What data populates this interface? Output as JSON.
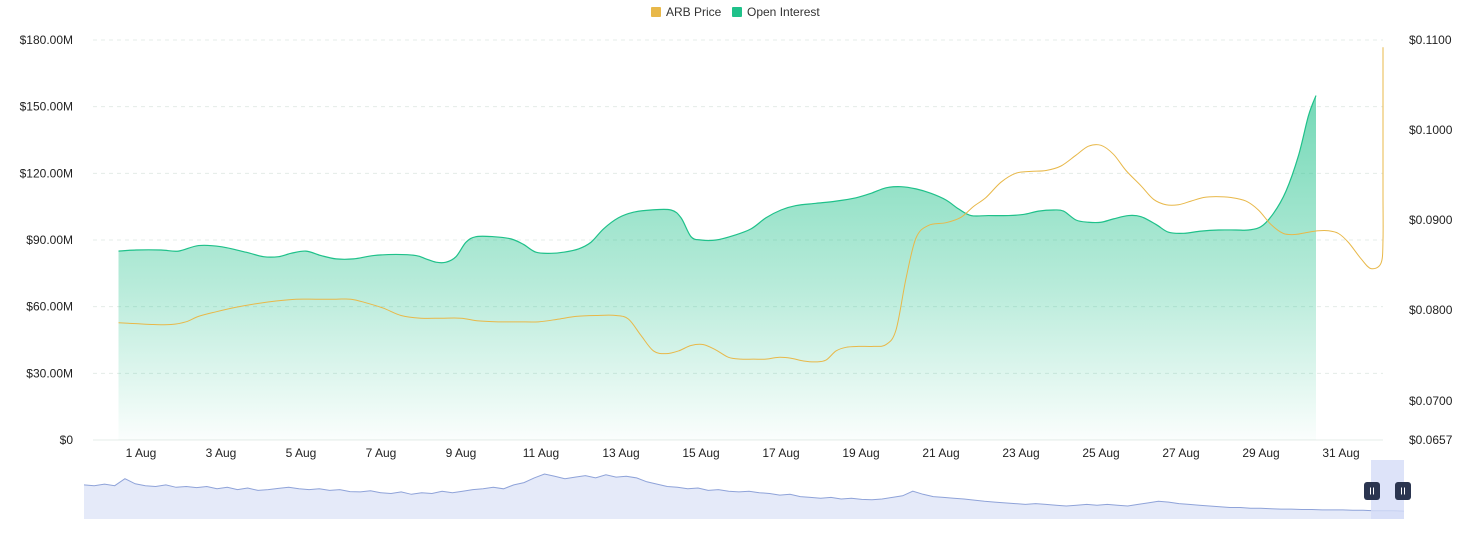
{
  "chart_data": {
    "type": "area",
    "title": "",
    "legend": {
      "placement": "top-center",
      "items": [
        {
          "label": "ARB Price",
          "color": "#e8b849"
        },
        {
          "label": "Open Interest",
          "color": "#1fc18a"
        }
      ]
    },
    "x_tick_labels": [
      "1 Aug",
      "3 Aug",
      "5 Aug",
      "7 Aug",
      "9 Aug",
      "11 Aug",
      "13 Aug",
      "15 Aug",
      "17 Aug",
      "19 Aug",
      "21 Aug",
      "23 Aug",
      "25 Aug",
      "27 Aug",
      "29 Aug",
      "31 Aug"
    ],
    "x_range_days": [
      0.1,
      32.0
    ],
    "y_left": {
      "ticks": [
        "$180.00M",
        "$150.00M",
        "$120.00M",
        "$90.00M",
        "$60.00M",
        "$30.00M",
        "$0"
      ],
      "tick_values": [
        180,
        150,
        120,
        90,
        60,
        30,
        0
      ],
      "range": [
        0,
        180
      ],
      "unit": "USD millions"
    },
    "y_right": {
      "ticks": [
        "$0.1100",
        "$0.1000",
        "$0.0900",
        "$0.0800",
        "$0.0700",
        "$0.0657"
      ],
      "tick_values": [
        0.11,
        0.1,
        0.09,
        0.08,
        0.07,
        0.0657
      ],
      "range": [
        0.0657,
        0.11
      ]
    },
    "grid": true,
    "series": [
      {
        "name": "Open Interest",
        "color": "#1fc18a",
        "kind": "area",
        "axis": "left",
        "points": [
          [
            0.1,
            85
          ],
          [
            0.8,
            85.5
          ],
          [
            1.8,
            85.5
          ],
          [
            2.5,
            85
          ],
          [
            3.3,
            87.5
          ],
          [
            4.2,
            87
          ],
          [
            5.2,
            84.5
          ],
          [
            5.9,
            82.5
          ],
          [
            6.5,
            82.5
          ],
          [
            7.0,
            84
          ],
          [
            7.6,
            85
          ],
          [
            8.2,
            83
          ],
          [
            8.8,
            81.5
          ],
          [
            9.5,
            81.5
          ],
          [
            10.3,
            83
          ],
          [
            11.2,
            83.5
          ],
          [
            12.0,
            83
          ],
          [
            12.4,
            81.5
          ],
          [
            12.8,
            80
          ],
          [
            13.2,
            80
          ],
          [
            13.6,
            82.5
          ],
          [
            14.0,
            89
          ],
          [
            14.4,
            91.5
          ],
          [
            15.1,
            91.5
          ],
          [
            15.8,
            90.5
          ],
          [
            16.3,
            88
          ],
          [
            16.8,
            84.5
          ],
          [
            17.4,
            84
          ],
          [
            17.9,
            84.5
          ],
          [
            18.5,
            86
          ],
          [
            19.0,
            89
          ],
          [
            19.5,
            95
          ],
          [
            20.1,
            100
          ],
          [
            20.7,
            102.5
          ],
          [
            21.4,
            103.5
          ],
          [
            22.2,
            103.5
          ],
          [
            22.6,
            100
          ],
          [
            23.0,
            91.5
          ],
          [
            23.4,
            90
          ],
          [
            24.0,
            90
          ],
          [
            24.7,
            92
          ],
          [
            25.4,
            95
          ],
          [
            26.0,
            100
          ],
          [
            26.6,
            103.5
          ],
          [
            27.2,
            105.5
          ],
          [
            28.0,
            106.5
          ],
          [
            28.8,
            107.5
          ],
          [
            29.6,
            109
          ],
          [
            30.2,
            111
          ],
          [
            30.8,
            113.5
          ],
          [
            31.4,
            114
          ],
          [
            32.0,
            113
          ],
          [
            32.6,
            111
          ],
          [
            33.2,
            108
          ],
          [
            33.7,
            104
          ],
          [
            34.2,
            101
          ],
          [
            34.9,
            101
          ],
          [
            35.7,
            101
          ],
          [
            36.3,
            101.5
          ],
          [
            36.9,
            103
          ],
          [
            37.5,
            103.5
          ],
          [
            37.9,
            103
          ],
          [
            38.4,
            99
          ],
          [
            38.9,
            98
          ],
          [
            39.4,
            98
          ],
          [
            39.9,
            99.5
          ],
          [
            40.5,
            101
          ],
          [
            41.0,
            100.5
          ],
          [
            41.6,
            97
          ],
          [
            42.1,
            93.5
          ],
          [
            42.7,
            93
          ],
          [
            43.4,
            94
          ],
          [
            44.1,
            94.5
          ],
          [
            44.8,
            94.5
          ],
          [
            45.3,
            94.5
          ],
          [
            45.8,
            96
          ],
          [
            46.3,
            102
          ],
          [
            46.8,
            112
          ],
          [
            47.3,
            128
          ],
          [
            47.7,
            146
          ],
          [
            48.0,
            155
          ]
        ]
      },
      {
        "name": "ARB Price",
        "color": "#e8b849",
        "kind": "line",
        "axis": "right",
        "points": [
          [
            0.1,
            0.0786
          ],
          [
            0.8,
            0.0785
          ],
          [
            1.5,
            0.0784
          ],
          [
            2.2,
            0.0784
          ],
          [
            2.8,
            0.0787
          ],
          [
            3.3,
            0.0793
          ],
          [
            4.0,
            0.0798
          ],
          [
            4.8,
            0.0803
          ],
          [
            5.6,
            0.0807
          ],
          [
            6.4,
            0.081
          ],
          [
            7.2,
            0.0812
          ],
          [
            8.0,
            0.0812
          ],
          [
            8.8,
            0.0812
          ],
          [
            9.4,
            0.0812
          ],
          [
            10.0,
            0.0808
          ],
          [
            10.7,
            0.0802
          ],
          [
            11.4,
            0.0794
          ],
          [
            12.2,
            0.0791
          ],
          [
            13.0,
            0.0791
          ],
          [
            13.8,
            0.0791
          ],
          [
            14.5,
            0.0788
          ],
          [
            15.3,
            0.0787
          ],
          [
            16.1,
            0.0787
          ],
          [
            16.9,
            0.0787
          ],
          [
            17.7,
            0.079
          ],
          [
            18.4,
            0.0793
          ],
          [
            19.2,
            0.0794
          ],
          [
            20.0,
            0.0794
          ],
          [
            20.5,
            0.079
          ],
          [
            21.0,
            0.0772
          ],
          [
            21.5,
            0.0755
          ],
          [
            22.0,
            0.0752
          ],
          [
            22.5,
            0.0755
          ],
          [
            23.0,
            0.0761
          ],
          [
            23.5,
            0.0762
          ],
          [
            24.0,
            0.0756
          ],
          [
            24.5,
            0.0748
          ],
          [
            25.0,
            0.0746
          ],
          [
            25.5,
            0.0746
          ],
          [
            26.0,
            0.0746
          ],
          [
            26.5,
            0.0748
          ],
          [
            27.0,
            0.0747
          ],
          [
            27.5,
            0.0744
          ],
          [
            28.0,
            0.0743
          ],
          [
            28.4,
            0.0745
          ],
          [
            28.8,
            0.0755
          ],
          [
            29.2,
            0.0759
          ],
          [
            29.7,
            0.076
          ],
          [
            30.3,
            0.076
          ],
          [
            30.8,
            0.0762
          ],
          [
            31.2,
            0.0778
          ],
          [
            31.6,
            0.0835
          ],
          [
            32.0,
            0.088
          ],
          [
            32.5,
            0.0894
          ],
          [
            33.2,
            0.0897
          ],
          [
            33.8,
            0.0903
          ],
          [
            34.3,
            0.0915
          ],
          [
            34.8,
            0.0925
          ],
          [
            35.4,
            0.0942
          ],
          [
            36.0,
            0.0952
          ],
          [
            36.6,
            0.0954
          ],
          [
            37.2,
            0.0955
          ],
          [
            37.8,
            0.096
          ],
          [
            38.4,
            0.0972
          ],
          [
            38.9,
            0.0982
          ],
          [
            39.4,
            0.0983
          ],
          [
            39.9,
            0.0973
          ],
          [
            40.4,
            0.0955
          ],
          [
            41.0,
            0.0938
          ],
          [
            41.5,
            0.0923
          ],
          [
            42.0,
            0.0917
          ],
          [
            42.5,
            0.0917
          ],
          [
            43.0,
            0.0921
          ],
          [
            43.5,
            0.0925
          ],
          [
            44.0,
            0.0926
          ],
          [
            44.6,
            0.0925
          ],
          [
            45.2,
            0.0921
          ],
          [
            45.7,
            0.0911
          ],
          [
            46.2,
            0.0895
          ],
          [
            46.7,
            0.0885
          ],
          [
            47.2,
            0.0884
          ],
          [
            47.6,
            0.0886
          ],
          [
            48.1,
            0.0888
          ],
          [
            48.5,
            0.0888
          ],
          [
            48.9,
            0.0885
          ],
          [
            49.3,
            0.0875
          ],
          [
            49.8,
            0.0857
          ],
          [
            50.2,
            0.0846
          ],
          [
            50.6,
            0.0852
          ],
          [
            51.0,
            0.0878
          ],
          [
            51.3,
            0.093
          ],
          [
            51.6,
            0.1005
          ],
          [
            51.9,
            0.1092
          ]
        ]
      }
    ],
    "navigator": {
      "values": [
        0.72,
        0.7,
        0.74,
        0.7,
        0.88,
        0.75,
        0.7,
        0.68,
        0.72,
        0.66,
        0.68,
        0.65,
        0.68,
        0.62,
        0.66,
        0.6,
        0.64,
        0.58,
        0.6,
        0.63,
        0.66,
        0.62,
        0.6,
        0.62,
        0.58,
        0.6,
        0.55,
        0.54,
        0.57,
        0.52,
        0.5,
        0.54,
        0.48,
        0.52,
        0.5,
        0.56,
        0.52,
        0.56,
        0.6,
        0.62,
        0.66,
        0.62,
        0.72,
        0.78,
        0.9,
        1.0,
        0.94,
        0.88,
        0.92,
        0.96,
        0.9,
        0.98,
        0.92,
        0.94,
        0.9,
        0.8,
        0.74,
        0.68,
        0.66,
        0.62,
        0.64,
        0.58,
        0.6,
        0.56,
        0.54,
        0.56,
        0.52,
        0.5,
        0.46,
        0.48,
        0.42,
        0.4,
        0.38,
        0.4,
        0.36,
        0.38,
        0.35,
        0.34,
        0.36,
        0.4,
        0.44,
        0.56,
        0.48,
        0.42,
        0.4,
        0.38,
        0.36,
        0.33,
        0.3,
        0.28,
        0.26,
        0.24,
        0.22,
        0.24,
        0.22,
        0.2,
        0.18,
        0.2,
        0.22,
        0.2,
        0.22,
        0.2,
        0.18,
        0.22,
        0.26,
        0.3,
        0.28,
        0.24,
        0.22,
        0.2,
        0.18,
        0.16,
        0.14,
        0.14,
        0.12,
        0.12,
        0.11,
        0.1,
        0.1,
        0.09,
        0.09,
        0.08,
        0.08,
        0.08,
        0.07,
        0.07,
        0.06,
        0.06,
        0.06,
        0.05
      ],
      "fill_color": "#e5eaf9",
      "line_color": "#8fa3d9",
      "selection_fill": "#d4dcf7",
      "handle_color": "#2b3550",
      "handle_icon": "pause-bars"
    }
  }
}
